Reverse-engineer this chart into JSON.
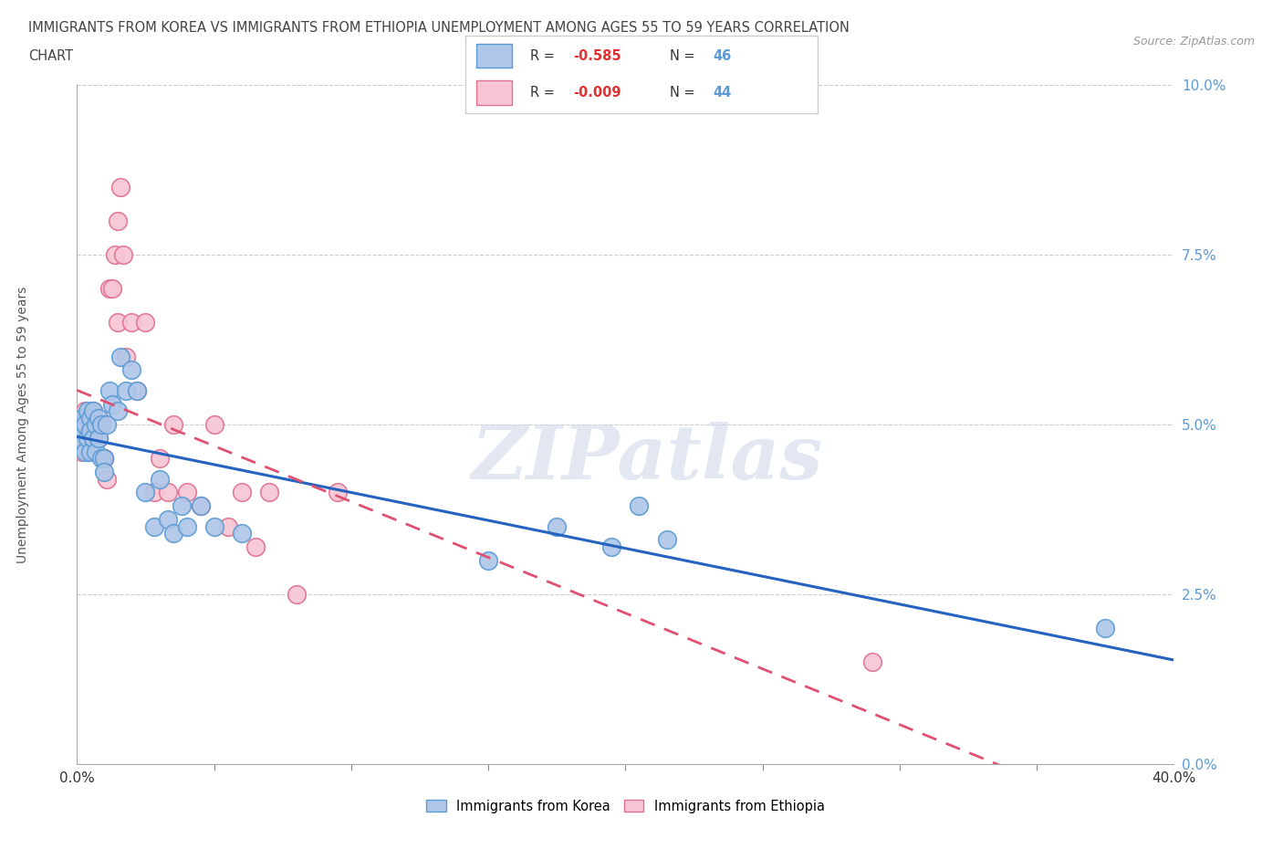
{
  "title_line1": "IMMIGRANTS FROM KOREA VS IMMIGRANTS FROM ETHIOPIA UNEMPLOYMENT AMONG AGES 55 TO 59 YEARS CORRELATION",
  "title_line2": "CHART",
  "source": "Source: ZipAtlas.com",
  "ylabel": "Unemployment Among Ages 55 to 59 years",
  "xlim": [
    0.0,
    0.4
  ],
  "ylim": [
    0.0,
    0.1
  ],
  "ytick_vals": [
    0.0,
    0.025,
    0.05,
    0.075,
    0.1
  ],
  "ytick_labels": [
    "0.0%",
    "2.5%",
    "5.0%",
    "7.5%",
    "10.0%"
  ],
  "xtick_minor": [
    0.05,
    0.1,
    0.15,
    0.2,
    0.25,
    0.3,
    0.35
  ],
  "korea_color": "#aec6e8",
  "korea_edge_color": "#5b9bd5",
  "ethiopia_color": "#f7c5d4",
  "ethiopia_edge_color": "#e07090",
  "korea_line_color": "#2563c0",
  "ethiopia_line_color": "#e05070",
  "korea_R": -0.585,
  "korea_N": 46,
  "ethiopia_R": -0.009,
  "ethiopia_N": 44,
  "watermark": "ZIPatlas",
  "korea_scatter_x": [
    0.001,
    0.001,
    0.002,
    0.002,
    0.002,
    0.003,
    0.003,
    0.004,
    0.004,
    0.005,
    0.005,
    0.005,
    0.006,
    0.006,
    0.007,
    0.007,
    0.008,
    0.008,
    0.009,
    0.009,
    0.01,
    0.01,
    0.011,
    0.012,
    0.013,
    0.015,
    0.016,
    0.018,
    0.02,
    0.022,
    0.025,
    0.028,
    0.03,
    0.033,
    0.035,
    0.038,
    0.04,
    0.045,
    0.05,
    0.06,
    0.15,
    0.175,
    0.195,
    0.205,
    0.215,
    0.375
  ],
  "korea_scatter_y": [
    0.05,
    0.048,
    0.051,
    0.049,
    0.047,
    0.05,
    0.046,
    0.052,
    0.048,
    0.051,
    0.049,
    0.046,
    0.052,
    0.048,
    0.05,
    0.046,
    0.051,
    0.048,
    0.05,
    0.045,
    0.045,
    0.043,
    0.05,
    0.055,
    0.053,
    0.052,
    0.06,
    0.055,
    0.058,
    0.055,
    0.04,
    0.035,
    0.042,
    0.036,
    0.034,
    0.038,
    0.035,
    0.038,
    0.035,
    0.034,
    0.03,
    0.035,
    0.032,
    0.038,
    0.033,
    0.02
  ],
  "ethiopia_scatter_x": [
    0.001,
    0.001,
    0.002,
    0.002,
    0.003,
    0.003,
    0.004,
    0.004,
    0.005,
    0.005,
    0.006,
    0.006,
    0.007,
    0.008,
    0.008,
    0.009,
    0.01,
    0.01,
    0.011,
    0.012,
    0.013,
    0.014,
    0.015,
    0.015,
    0.016,
    0.017,
    0.018,
    0.02,
    0.022,
    0.025,
    0.028,
    0.03,
    0.033,
    0.035,
    0.04,
    0.045,
    0.05,
    0.055,
    0.06,
    0.065,
    0.07,
    0.08,
    0.095,
    0.29
  ],
  "ethiopia_scatter_y": [
    0.05,
    0.047,
    0.051,
    0.046,
    0.052,
    0.048,
    0.05,
    0.046,
    0.051,
    0.047,
    0.052,
    0.048,
    0.05,
    0.051,
    0.048,
    0.05,
    0.045,
    0.045,
    0.042,
    0.07,
    0.07,
    0.075,
    0.065,
    0.08,
    0.085,
    0.075,
    0.06,
    0.065,
    0.055,
    0.065,
    0.04,
    0.045,
    0.04,
    0.05,
    0.04,
    0.038,
    0.05,
    0.035,
    0.04,
    0.032,
    0.04,
    0.025,
    0.04,
    0.015
  ]
}
